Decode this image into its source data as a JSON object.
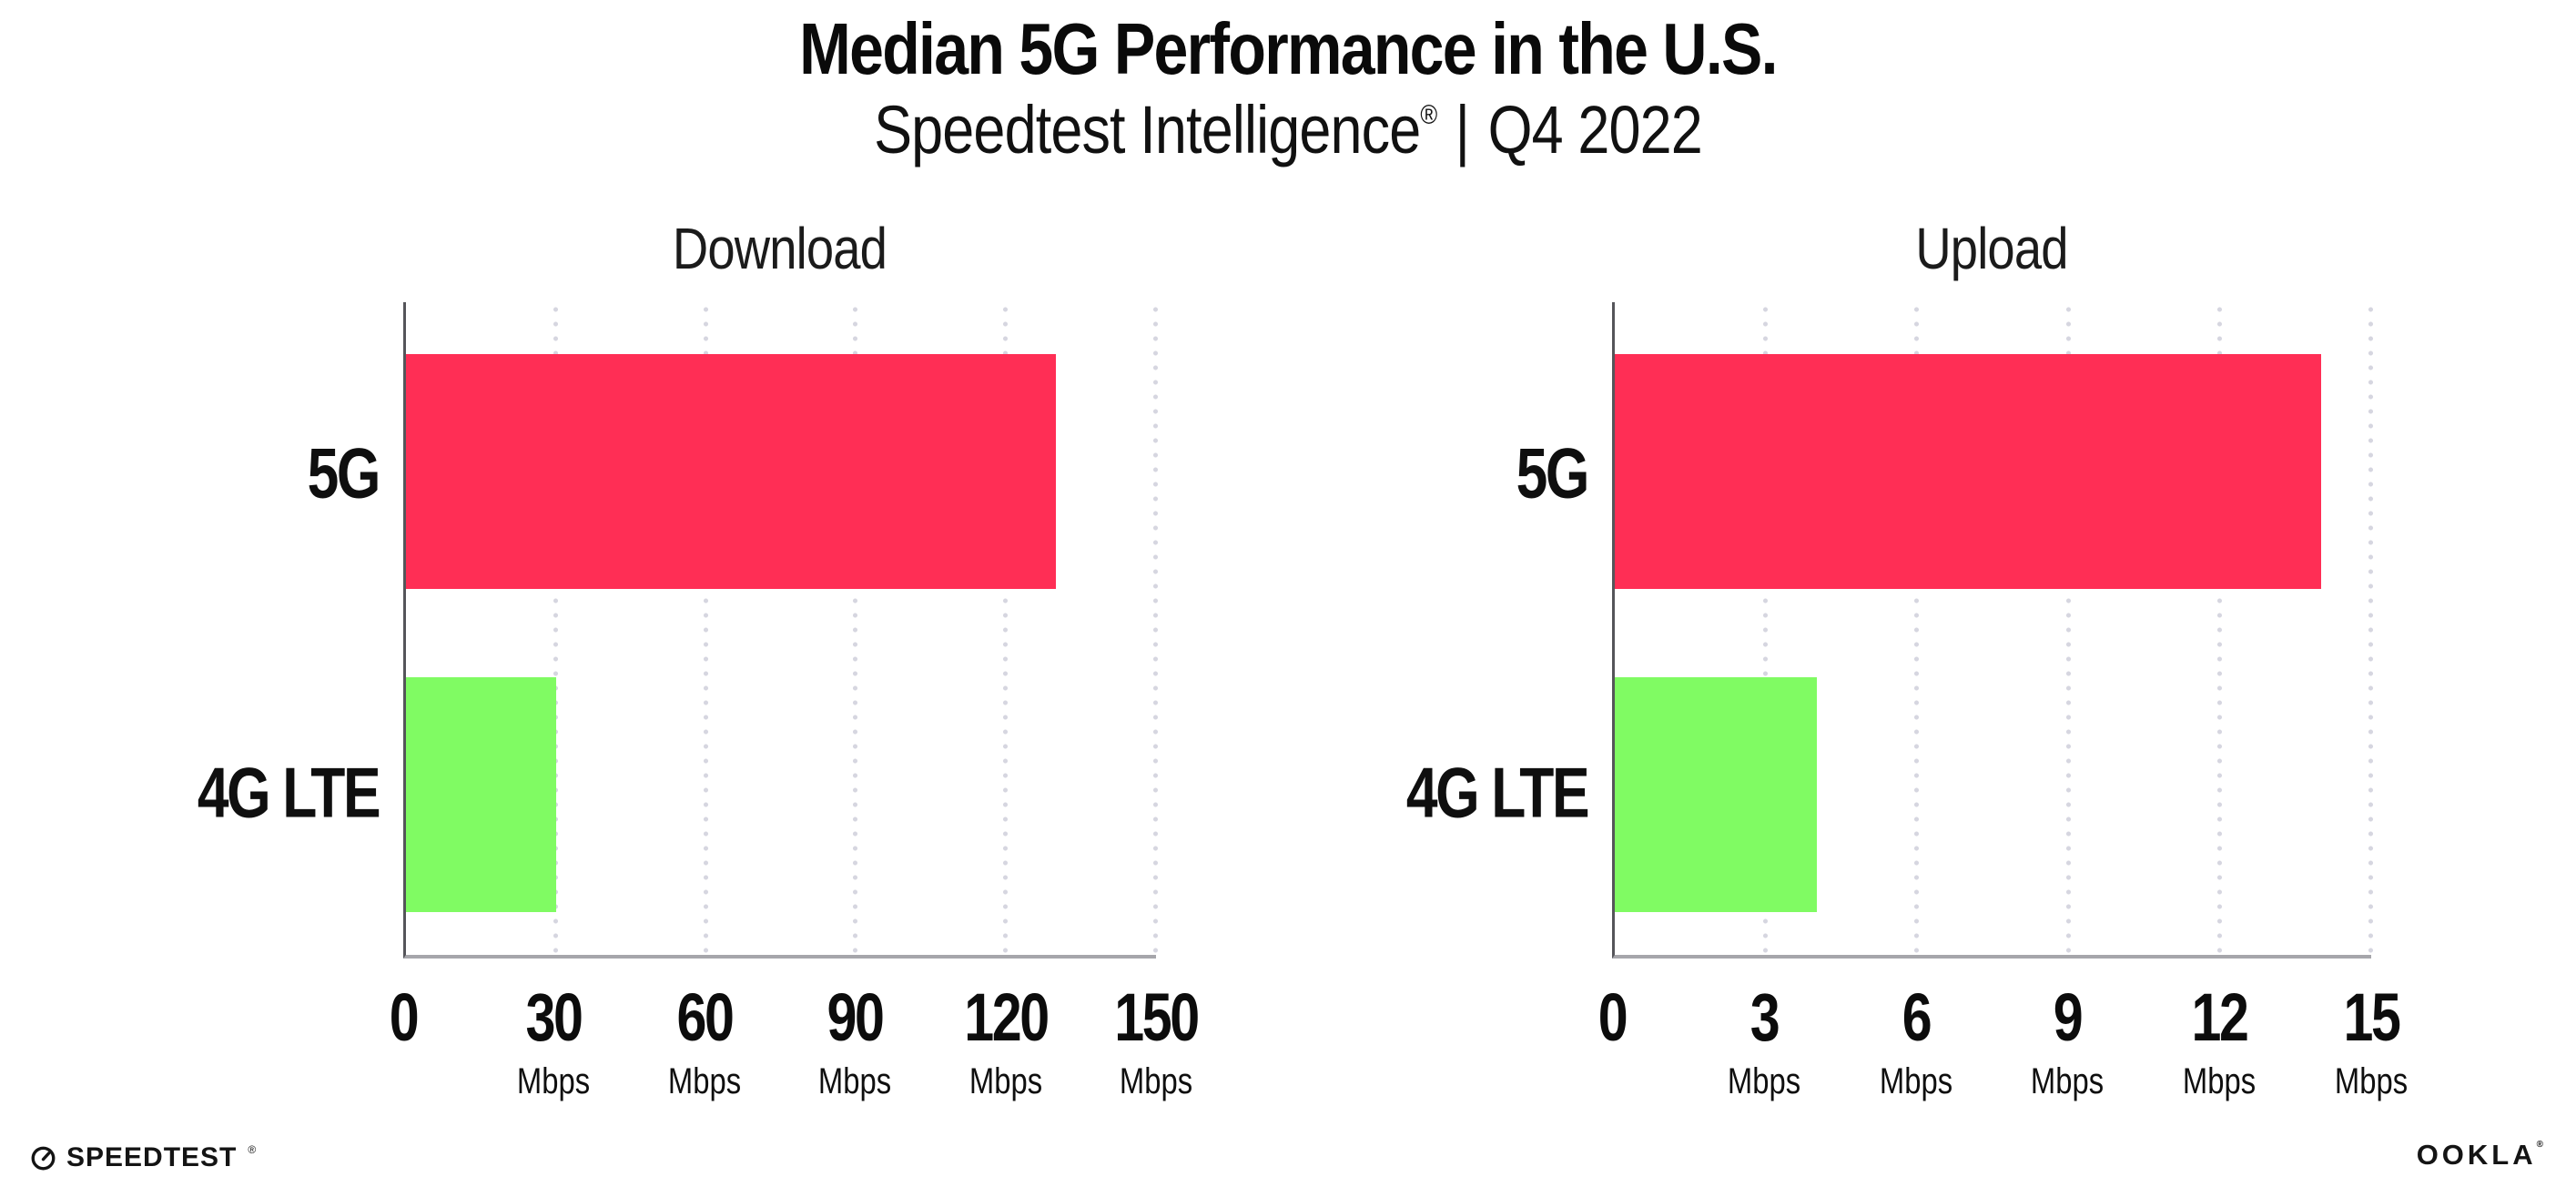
{
  "header": {
    "title": "Median 5G Performance in the U.S.",
    "subtitle_brand": "Speedtest Intelligence",
    "subtitle_reg": "®",
    "subtitle_sep": "|",
    "subtitle_period": "Q4 2022"
  },
  "colors": {
    "bar_5g": "#ff2e55",
    "bar_4g_lte": "#80fb63",
    "gridline": "#d6d6e0",
    "x_axis": "#a6a6ab",
    "y_axis": "#55555a",
    "text": "#0f0f0f"
  },
  "chart_data": [
    {
      "type": "bar",
      "orientation": "horizontal",
      "title": "Download",
      "categories": [
        "5G",
        "4G LTE"
      ],
      "values": [
        130,
        30
      ],
      "unit": "Mbps",
      "xlim": [
        0,
        150
      ],
      "ticks": [
        0,
        30,
        60,
        90,
        120,
        150
      ],
      "bar_colors": [
        "#ff2e55",
        "#80fb63"
      ],
      "grid": "dotted-vertical",
      "legend": "none"
    },
    {
      "type": "bar",
      "orientation": "horizontal",
      "title": "Upload",
      "categories": [
        "5G",
        "4G LTE"
      ],
      "values": [
        14,
        4
      ],
      "unit": "Mbps",
      "xlim": [
        0,
        15
      ],
      "ticks": [
        0,
        3,
        6,
        9,
        12,
        15
      ],
      "bar_colors": [
        "#ff2e55",
        "#80fb63"
      ],
      "grid": "dotted-vertical",
      "legend": "none"
    }
  ],
  "footer": {
    "speedtest_label": "SPEEDTEST",
    "speedtest_mark": "®",
    "ookla_label": "OOKLA",
    "ookla_mark": "®"
  }
}
